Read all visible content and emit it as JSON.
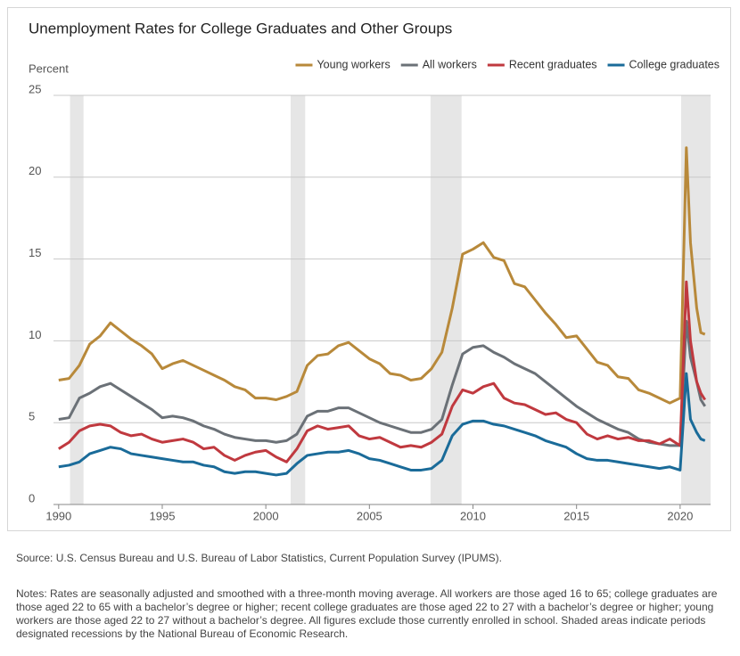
{
  "chart_data": {
    "type": "line",
    "title": "Unemployment Rates for College Graduates and Other Groups",
    "ylabel": "Percent",
    "xlim": [
      1989.75,
      2021.47
    ],
    "ylim": [
      0,
      25
    ],
    "xticks": [
      1990,
      1995,
      2000,
      2005,
      2010,
      2015,
      2020
    ],
    "yticks": [
      0,
      5,
      10,
      15,
      20,
      25
    ],
    "grid": true,
    "legend": "top-right",
    "recession_color": "#e6e6e6",
    "recessions": [
      [
        1990.55,
        1991.2
      ],
      [
        2001.2,
        2001.9
      ],
      [
        2007.95,
        2009.45
      ],
      [
        2020.05,
        2021.47
      ]
    ],
    "x": [
      1990,
      1990.5,
      1991,
      1991.5,
      1992,
      1992.5,
      1993,
      1993.5,
      1994,
      1994.5,
      1995,
      1995.5,
      1996,
      1996.5,
      1997,
      1997.5,
      1998,
      1998.5,
      1999,
      1999.5,
      2000,
      2000.5,
      2001,
      2001.5,
      2002,
      2002.5,
      2003,
      2003.5,
      2004,
      2004.5,
      2005,
      2005.5,
      2006,
      2006.5,
      2007,
      2007.5,
      2008,
      2008.5,
      2009,
      2009.5,
      2010,
      2010.5,
      2011,
      2011.5,
      2012,
      2012.5,
      2013,
      2013.5,
      2014,
      2014.5,
      2015,
      2015.5,
      2016,
      2016.5,
      2017,
      2017.5,
      2018,
      2018.5,
      2019,
      2019.5,
      2020.0,
      2020.3,
      2020.5,
      2020.8,
      2021.0,
      2021.2
    ],
    "series": [
      {
        "name": "Young workers",
        "color": "#b8893a",
        "values": [
          7.6,
          7.7,
          8.5,
          9.8,
          10.3,
          11.1,
          10.6,
          10.1,
          9.7,
          9.2,
          8.3,
          8.6,
          8.8,
          8.5,
          8.2,
          7.9,
          7.6,
          7.2,
          7.0,
          6.5,
          6.5,
          6.4,
          6.6,
          6.9,
          8.5,
          9.1,
          9.2,
          9.7,
          9.9,
          9.4,
          8.9,
          8.6,
          8.0,
          7.9,
          7.6,
          7.7,
          8.3,
          9.3,
          12.0,
          15.3,
          15.6,
          16.0,
          15.1,
          14.9,
          13.5,
          13.3,
          12.5,
          11.7,
          11.0,
          10.2,
          10.3,
          9.5,
          8.7,
          8.5,
          7.8,
          7.7,
          7.0,
          6.8,
          6.5,
          6.2,
          6.5,
          21.8,
          16.0,
          12.0,
          10.5,
          10.4
        ]
      },
      {
        "name": "All workers",
        "color": "#6b7177",
        "values": [
          5.2,
          5.3,
          6.5,
          6.8,
          7.2,
          7.4,
          7.0,
          6.6,
          6.2,
          5.8,
          5.3,
          5.4,
          5.3,
          5.1,
          4.8,
          4.6,
          4.3,
          4.1,
          4.0,
          3.9,
          3.9,
          3.8,
          3.9,
          4.3,
          5.4,
          5.7,
          5.7,
          5.9,
          5.9,
          5.6,
          5.3,
          5.0,
          4.8,
          4.6,
          4.4,
          4.4,
          4.6,
          5.2,
          7.3,
          9.2,
          9.6,
          9.7,
          9.3,
          9.0,
          8.6,
          8.3,
          8.0,
          7.5,
          7.0,
          6.5,
          6.0,
          5.6,
          5.2,
          4.9,
          4.6,
          4.4,
          4.0,
          3.8,
          3.7,
          3.6,
          3.6,
          11.2,
          9.0,
          7.5,
          6.4,
          6.0
        ]
      },
      {
        "name": "Recent graduates",
        "color": "#c0393f",
        "values": [
          3.4,
          3.8,
          4.5,
          4.8,
          4.9,
          4.8,
          4.4,
          4.2,
          4.3,
          4.0,
          3.8,
          3.9,
          4.0,
          3.8,
          3.4,
          3.5,
          3.0,
          2.7,
          3.0,
          3.2,
          3.3,
          2.9,
          2.6,
          3.4,
          4.5,
          4.8,
          4.6,
          4.7,
          4.8,
          4.2,
          4.0,
          4.1,
          3.8,
          3.5,
          3.6,
          3.5,
          3.8,
          4.3,
          6.0,
          7.0,
          6.8,
          7.2,
          7.4,
          6.5,
          6.2,
          6.1,
          5.8,
          5.5,
          5.6,
          5.2,
          5.0,
          4.3,
          4.0,
          4.2,
          4.0,
          4.1,
          3.9,
          3.9,
          3.7,
          4.0,
          3.6,
          13.6,
          10.0,
          7.5,
          6.8,
          6.4
        ]
      },
      {
        "name": "College graduates",
        "color": "#1a6b99",
        "values": [
          2.3,
          2.4,
          2.6,
          3.1,
          3.3,
          3.5,
          3.4,
          3.1,
          3.0,
          2.9,
          2.8,
          2.7,
          2.6,
          2.6,
          2.4,
          2.3,
          2.0,
          1.9,
          2.0,
          2.0,
          1.9,
          1.8,
          1.9,
          2.5,
          3.0,
          3.1,
          3.2,
          3.2,
          3.3,
          3.1,
          2.8,
          2.7,
          2.5,
          2.3,
          2.1,
          2.1,
          2.2,
          2.7,
          4.2,
          4.9,
          5.1,
          5.1,
          4.9,
          4.8,
          4.6,
          4.4,
          4.2,
          3.9,
          3.7,
          3.5,
          3.1,
          2.8,
          2.7,
          2.7,
          2.6,
          2.5,
          2.4,
          2.3,
          2.2,
          2.3,
          2.1,
          8.0,
          5.2,
          4.4,
          4.0,
          3.9
        ]
      }
    ],
    "source": "Source: U.S. Census Bureau and U.S. Bureau of Labor Statistics, Current Population Survey (IPUMS).",
    "notes": "Notes: Rates are seasonally adjusted and smoothed with a three-month moving average. All workers are those aged 16 to 65; college graduates are those aged 22 to 65 with a bachelor’s degree or higher; recent college graduates are those aged 22 to 27 with a bachelor’s degree or higher; young workers are those aged 22 to 27 without a bachelor’s degree. All figures exclude those currently enrolled in school. Shaded areas indicate periods designated recessions by the National Bureau of Economic Research."
  }
}
